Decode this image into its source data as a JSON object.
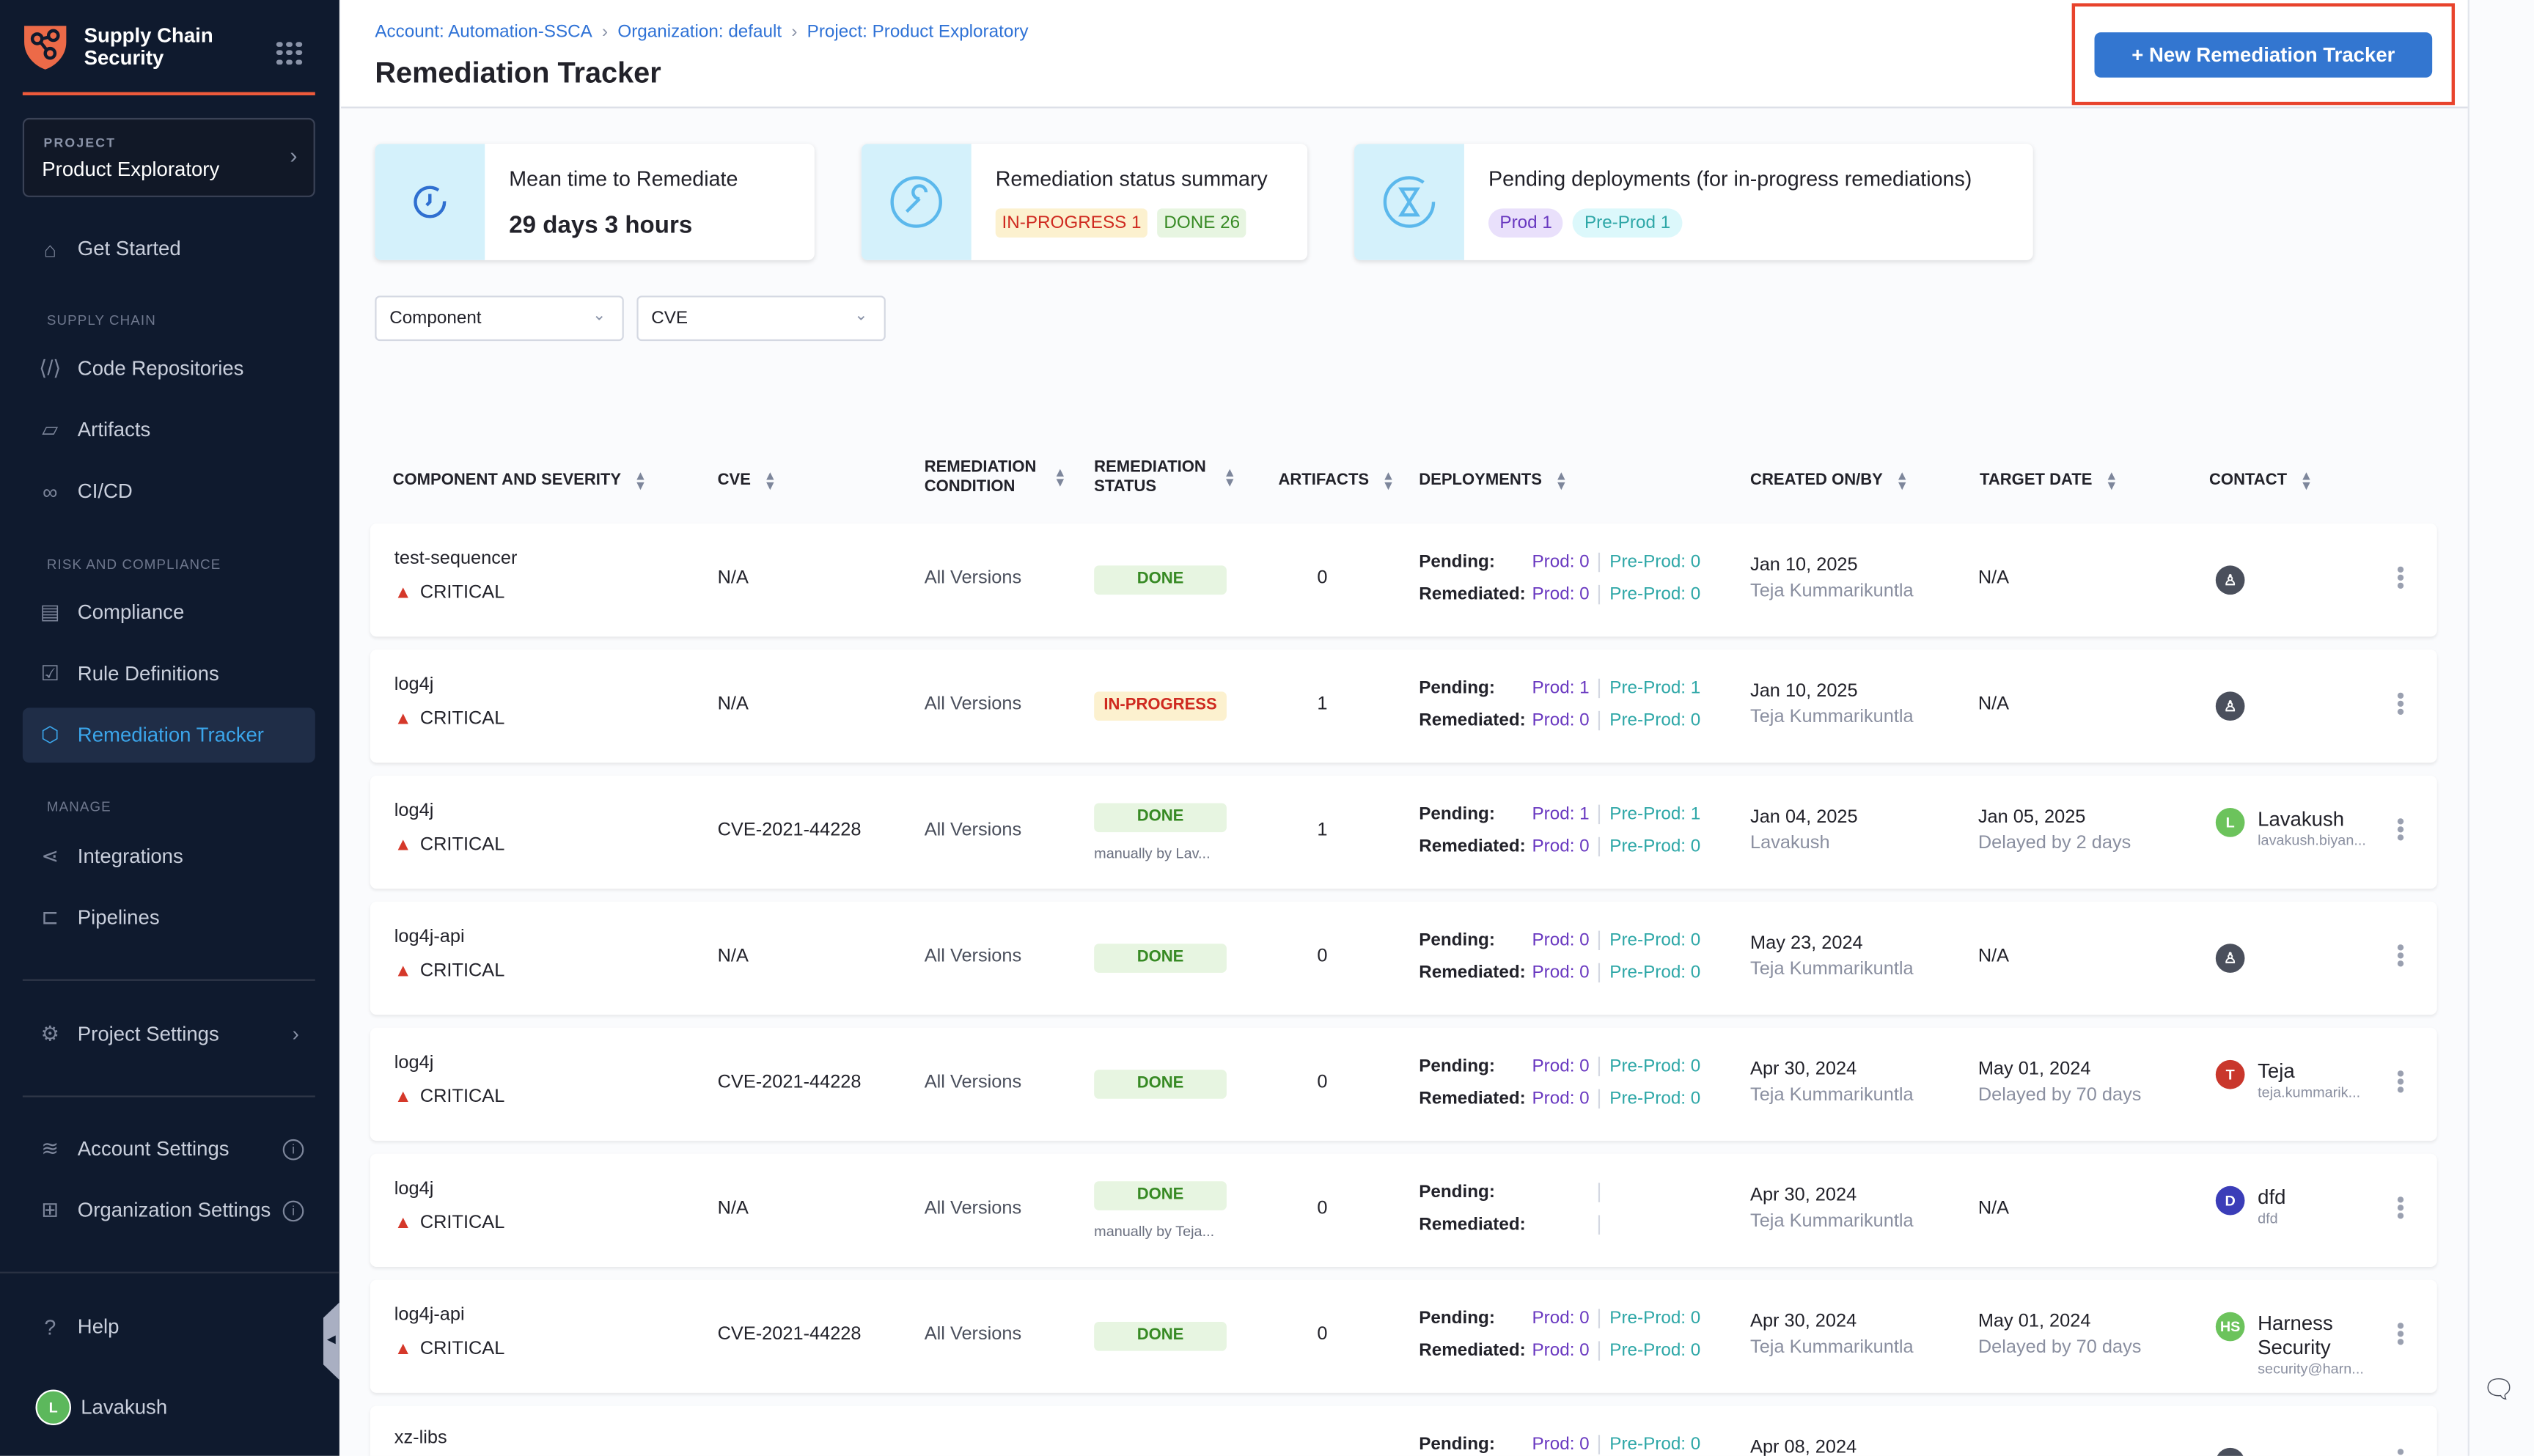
{
  "sidebar": {
    "brand": "Supply Chain Security",
    "project_label": "PROJECT",
    "project_name": "Product Exploratory",
    "get_started": "Get Started",
    "section_supply_chain": "SUPPLY CHAIN",
    "code_repositories": "Code Repositories",
    "artifacts": "Artifacts",
    "cicd": "CI/CD",
    "section_risk": "RISK AND COMPLIANCE",
    "compliance": "Compliance",
    "rule_definitions": "Rule Definitions",
    "remediation_tracker": "Remediation Tracker",
    "section_manage": "MANAGE",
    "integrations": "Integrations",
    "pipelines": "Pipelines",
    "project_settings": "Project Settings",
    "account_settings": "Account Settings",
    "organization_settings": "Organization Settings",
    "help": "Help",
    "user_initial": "L",
    "user_name": "Lavakush"
  },
  "header": {
    "breadcrumbs": [
      "Account: Automation-SSCA",
      "Organization: default",
      "Project: Product Exploratory"
    ],
    "title": "Remediation Tracker",
    "new_button": "+ New Remediation Tracker"
  },
  "cards": {
    "mttr": {
      "title": "Mean time to Remediate",
      "value": "29 days 3 hours"
    },
    "status": {
      "title": "Remediation status summary",
      "in_progress": "IN-PROGRESS 1",
      "done": "DONE 26"
    },
    "pending": {
      "title": "Pending deployments (for in-progress remediations)",
      "prod": "Prod 1",
      "preprod": "Pre-Prod 1"
    }
  },
  "filters": {
    "component": "Component",
    "cve": "CVE"
  },
  "table": {
    "headers": [
      "COMPONENT AND SEVERITY",
      "CVE",
      "REMEDIATION CONDITION",
      "REMEDIATION STATUS",
      "ARTIFACTS",
      "DEPLOYMENTS",
      "CREATED ON/BY",
      "TARGET DATE",
      "CONTACT"
    ],
    "pending_label": "Pending:",
    "remediated_label": "Remediated:",
    "rows": [
      {
        "component": "test-sequencer",
        "severity": "CRITICAL",
        "cve": "N/A",
        "condition": "All Versions",
        "status": "DONE",
        "status_note": "",
        "artifacts": "0",
        "pending_prod": "Prod: 0",
        "pending_pre": "Pre-Prod: 0",
        "rem_prod": "Prod: 0",
        "rem_pre": "Pre-Prod: 0",
        "created": "Jan 10, 2025",
        "created_by": "Teja Kummarikuntla",
        "target": "N/A",
        "target_note": "",
        "contact_initial": "",
        "contact_color": "#4a4f5c",
        "contact_name": "",
        "contact_email": ""
      },
      {
        "component": "log4j",
        "severity": "CRITICAL",
        "cve": "N/A",
        "condition": "All Versions",
        "status": "IN-PROGRESS",
        "status_note": "",
        "artifacts": "1",
        "pending_prod": "Prod: 1",
        "pending_pre": "Pre-Prod: 1",
        "rem_prod": "Prod: 0",
        "rem_pre": "Pre-Prod: 0",
        "created": "Jan 10, 2025",
        "created_by": "Teja Kummarikuntla",
        "target": "N/A",
        "target_note": "",
        "contact_initial": "",
        "contact_color": "#4a4f5c",
        "contact_name": "",
        "contact_email": ""
      },
      {
        "component": "log4j",
        "severity": "CRITICAL",
        "cve": "CVE-2021-44228",
        "condition": "All Versions",
        "status": "DONE",
        "status_note": "manually by Lav...",
        "artifacts": "1",
        "pending_prod": "Prod: 1",
        "pending_pre": "Pre-Prod: 1",
        "rem_prod": "Prod: 0",
        "rem_pre": "Pre-Prod: 0",
        "created": "Jan 04, 2025",
        "created_by": "Lavakush",
        "target": "Jan 05, 2025",
        "target_note": "Delayed by 2 days",
        "contact_initial": "L",
        "contact_color": "#6cc35c",
        "contact_name": "Lavakush",
        "contact_email": "lavakush.biyan..."
      },
      {
        "component": "log4j-api",
        "severity": "CRITICAL",
        "cve": "N/A",
        "condition": "All Versions",
        "status": "DONE",
        "status_note": "",
        "artifacts": "0",
        "pending_prod": "Prod: 0",
        "pending_pre": "Pre-Prod: 0",
        "rem_prod": "Prod: 0",
        "rem_pre": "Pre-Prod: 0",
        "created": "May 23, 2024",
        "created_by": "Teja Kummarikuntla",
        "target": "N/A",
        "target_note": "",
        "contact_initial": "",
        "contact_color": "#4a4f5c",
        "contact_name": "",
        "contact_email": ""
      },
      {
        "component": "log4j",
        "severity": "CRITICAL",
        "cve": "CVE-2021-44228",
        "condition": "All Versions",
        "status": "DONE",
        "status_note": "",
        "artifacts": "0",
        "pending_prod": "Prod: 0",
        "pending_pre": "Pre-Prod: 0",
        "rem_prod": "Prod: 0",
        "rem_pre": "Pre-Prod: 0",
        "created": "Apr 30, 2024",
        "created_by": "Teja Kummarikuntla",
        "target": "May 01, 2024",
        "target_note": "Delayed by 70 days",
        "contact_initial": "T",
        "contact_color": "#c9372c",
        "contact_name": "Teja",
        "contact_email": "teja.kummarik..."
      },
      {
        "component": "log4j",
        "severity": "CRITICAL",
        "cve": "N/A",
        "condition": "All Versions",
        "status": "DONE",
        "status_note": "manually by Teja...",
        "artifacts": "0",
        "pending_prod": "",
        "pending_pre": "",
        "rem_prod": "",
        "rem_pre": "",
        "created": "Apr 30, 2024",
        "created_by": "Teja Kummarikuntla",
        "target": "N/A",
        "target_note": "",
        "contact_initial": "D",
        "contact_color": "#3b3db8",
        "contact_name": "dfd",
        "contact_email": "dfd"
      },
      {
        "component": "log4j-api",
        "severity": "CRITICAL",
        "cve": "CVE-2021-44228",
        "condition": "All Versions",
        "status": "DONE",
        "status_note": "",
        "artifacts": "0",
        "pending_prod": "Prod: 0",
        "pending_pre": "Pre-Prod: 0",
        "rem_prod": "Prod: 0",
        "rem_pre": "Pre-Prod: 0",
        "created": "Apr 30, 2024",
        "created_by": "Teja Kummarikuntla",
        "target": "May 01, 2024",
        "target_note": "Delayed by 70 days",
        "contact_initial": "HS",
        "contact_color": "#6cc35c",
        "contact_name": "Harness Security",
        "contact_email": "security@harn..."
      },
      {
        "component": "xz-libs",
        "severity": "",
        "cve": "",
        "condition": "",
        "status": "",
        "status_note": "",
        "artifacts": "",
        "pending_prod": "Prod: 0",
        "pending_pre": "Pre-Prod: 0",
        "rem_prod": "",
        "rem_pre": "",
        "created": "Apr 08, 2024",
        "created_by": "",
        "target": "",
        "target_note": "",
        "contact_initial": "",
        "contact_color": "#4a4f5c",
        "contact_name": "",
        "contact_email": ""
      }
    ]
  },
  "colors": {
    "sidebar_bg": "#0f1a2e",
    "accent": "#3376d0",
    "brand": "#ee5a3b",
    "done": "#378a24",
    "in_progress": "#cf2a20",
    "prod": "#6938c0",
    "preprod": "#2ea7a7"
  }
}
